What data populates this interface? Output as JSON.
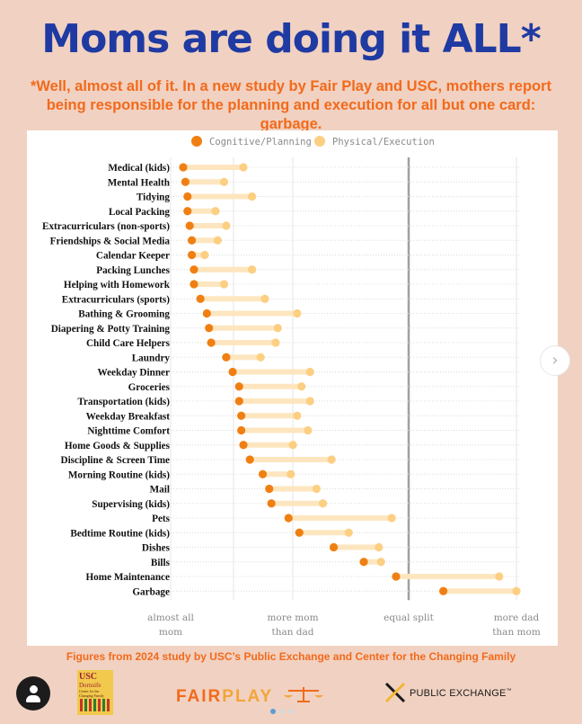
{
  "header": {
    "title": "Moms are doing it ALL*",
    "subtitle": "*Well, almost all of it. In a new study by Fair Play and USC, mothers report being responsible for the planning and execution for all but one card: garbage."
  },
  "footer": {
    "source": "Figures from 2024 study by USC’s Public Exchange and Center for the Changing Family",
    "fairplay_fair": "FAIR",
    "fairplay_play": "PLAY",
    "usc_line1": "USC",
    "usc_line2": "Dornsife",
    "usc_line3": "Center for the Changing Family",
    "public_exchange": "PUBLIC EXCHANGE",
    "public_exchange_tm": "™",
    "next_label": "›"
  },
  "colors": {
    "cognitive": "#f07f13",
    "physical": "#fccf83",
    "equal_line": "#a0a0a0",
    "title": "#1f3aa2",
    "accent": "#f26a1b"
  },
  "chart_data": {
    "type": "dumbbell",
    "title": "Moms are doing it ALL*",
    "legend": [
      "Cognitive/Planning",
      "Physical/Execution"
    ],
    "legend_position": "top",
    "x_axis": {
      "ticks": [
        "almost all mom",
        "more mom than dad",
        "equal split",
        "more dad than mom"
      ],
      "reference_line": "equal split"
    },
    "categories": [
      "Medical (kids)",
      "Mental Health",
      "Tidying",
      "Local Packing",
      "Extracurriculars (non-sports)",
      "Friendships & Social Media",
      "Calendar Keeper",
      "Packing Lunches",
      "Helping with Homework",
      "Extracurriculars (sports)",
      "Bathing & Grooming",
      "Diapering & Potty Training",
      "Child Care Helpers",
      "Laundry",
      "Weekday Dinner",
      "Groceries",
      "Transportation (kids)",
      "Weekday Breakfast",
      "Nighttime Comfort",
      "Home Goods & Supplies",
      "Discipline & Screen Time",
      "Morning Routine (kids)",
      "Mail",
      "Supervising (kids)",
      "Pets",
      "Bedtime Routine (kids)",
      "Dishes",
      "Bills",
      "Home Maintenance",
      "Garbage"
    ],
    "series": [
      {
        "name": "Cognitive/Planning",
        "values": [
          0.0,
          0.01,
          0.02,
          0.02,
          0.03,
          0.04,
          0.04,
          0.05,
          0.05,
          0.08,
          0.11,
          0.12,
          0.13,
          0.2,
          0.23,
          0.26,
          0.26,
          0.27,
          0.27,
          0.28,
          0.31,
          0.37,
          0.4,
          0.41,
          0.49,
          0.54,
          0.7,
          0.84,
          0.99,
          1.21
        ]
      },
      {
        "name": "Physical/Execution",
        "values": [
          0.28,
          0.19,
          0.32,
          0.15,
          0.2,
          0.16,
          0.1,
          0.32,
          0.19,
          0.38,
          0.53,
          0.44,
          0.43,
          0.36,
          0.59,
          0.55,
          0.59,
          0.53,
          0.58,
          0.51,
          0.69,
          0.5,
          0.62,
          0.65,
          0.97,
          0.77,
          0.91,
          0.92,
          1.47,
          1.55
        ]
      }
    ]
  }
}
